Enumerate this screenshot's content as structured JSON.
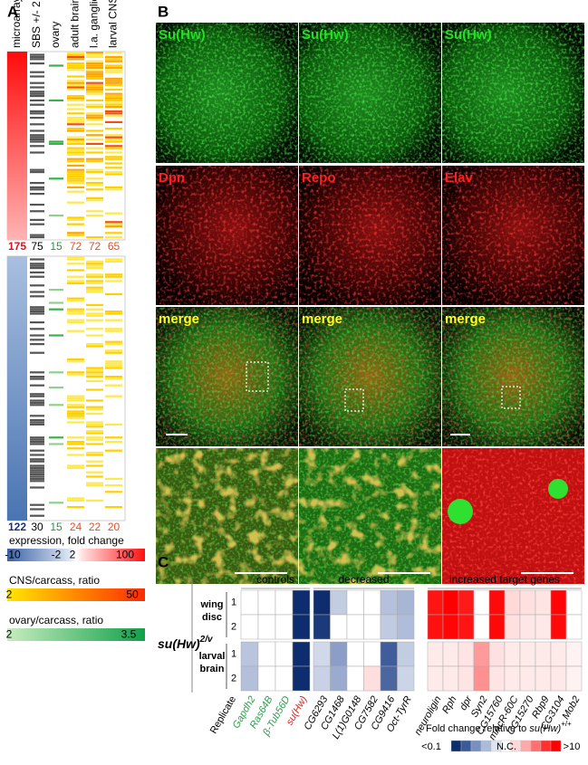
{
  "panel_a": {
    "label": "A",
    "columns": [
      "microarray",
      "SBS +/- 2 kb",
      "ovary",
      "adult brain",
      "l.a. ganglion",
      "larval CNS"
    ],
    "upper_counts": [
      175,
      75,
      15,
      72,
      72,
      65
    ],
    "lower_counts": [
      122,
      30,
      15,
      24,
      22,
      20
    ],
    "legends": [
      {
        "title": "expression, fold change",
        "labels": [
          "-10",
          "-2",
          "2",
          "100"
        ]
      },
      {
        "title": "CNS/carcass, ratio",
        "labels": [
          "2",
          "50"
        ]
      },
      {
        "title": "ovary/carcass, ratio",
        "labels": [
          "2",
          "3.5"
        ]
      }
    ]
  },
  "panel_b": {
    "label": "B",
    "rows": [
      [
        "Su(Hw)",
        "Su(Hw)",
        "Su(Hw)"
      ],
      [
        "Dpn",
        "Repo",
        "Elav"
      ],
      [
        "merge",
        "merge",
        "merge"
      ]
    ]
  },
  "panel_c": {
    "label": "C",
    "genotype": "su(Hw)",
    "genotype_sup": "2/v",
    "groups": [
      "controls",
      "decreased",
      "increased target genes"
    ],
    "tissues": [
      [
        "wing",
        "disc"
      ],
      [
        "larval",
        "brain"
      ]
    ],
    "replicates": [
      "1",
      "2"
    ],
    "replicate_label": "Replicate",
    "genes": [
      "Gapdh2",
      "Ras64B",
      "β-Tub56D",
      "su(Hw)",
      "CG6293",
      "CG1468",
      "L(1)G0148",
      "CG7582",
      "CG9416",
      "Oct-TyrR",
      "neuroligin",
      "Rph",
      "dpr",
      "Syn2",
      "CG15760",
      "mAcR-60C",
      "CG15270",
      "Rbp9",
      "CG3104",
      "Mob2"
    ],
    "gene_colors": [
      "#2a9d4a",
      "#2a9d4a",
      "#2a9d4a",
      "#e02020",
      "#000",
      "#000",
      "#000",
      "#000",
      "#000",
      "#000",
      "#000",
      "#000",
      "#000",
      "#000",
      "#000",
      "#000",
      "#000",
      "#000",
      "#000",
      "#000"
    ],
    "cells": [
      [
        "#ffffff",
        "#ffffff",
        "#ffffff",
        "#0e2d6e",
        "#0e2d6e",
        "#c3cde2",
        "#ffffff",
        "#ffffff",
        "#b4c0dc",
        "#a8b6d6",
        "#ff1414",
        "#ff0000",
        "#ff1a1a",
        "#ffffff",
        "#ff0a0a",
        "#ffd8d8",
        "#ffe0e0",
        "#ffe4e4",
        "#ff0505",
        "#ffffff"
      ],
      [
        "#ffffff",
        "#ffffff",
        "#ffffff",
        "#0e2d6e",
        "#1a3a7a",
        "#ffffff",
        "#ffffff",
        "#ffffff",
        "#c0cae0",
        "#b0bdda",
        "#ff1010",
        "#ff0505",
        "#ff1414",
        "#ffffff",
        "#ff0808",
        "#ffe0e0",
        "#ffe6e6",
        "#ffe8e8",
        "#ff0a0a",
        "#ffffff"
      ],
      [
        "#b9c4dd",
        "#ffffff",
        "#ffffff",
        "#0e2d6e",
        "#d0d8ea",
        "#8c9ec8",
        "#ffffff",
        "#ffffff",
        "#3e5d9a",
        "#c3cde2",
        "#ffeaea",
        "#ffeaea",
        "#ffe4e4",
        "#ff9a9a",
        "#ffe0e0",
        "#ffeaea",
        "#ffeaea",
        "#ffeaea",
        "#ffeaea",
        "#fff2f2"
      ],
      [
        "#b4c0db",
        "#ffffff",
        "#ffffff",
        "#0e2d6e",
        "#c8d1e6",
        "#9aabcf",
        "#ffffff",
        "#ffdede",
        "#4a67a0",
        "#ccd5e8",
        "#ffeaea",
        "#ffeaea",
        "#ffe4e4",
        "#ff9090",
        "#ffe4e4",
        "#ffeaea",
        "#ffeaea",
        "#ffeaea",
        "#ffe8e8",
        "#fff2f2"
      ]
    ],
    "legend_title": "Fold change relative to ",
    "legend_gene": "su(Hw)",
    "legend_sup": "+/+",
    "scale_labels": [
      "<0.1",
      "N.C.",
      ">10"
    ],
    "scale_colors": [
      "#0e2d6e",
      "#3a5a9a",
      "#7890c0",
      "#aebbd8",
      "#dfe4ef",
      "#ffffff",
      "#ffd8d8",
      "#ffaaaa",
      "#ff7070",
      "#ff3030",
      "#ff0000"
    ]
  }
}
